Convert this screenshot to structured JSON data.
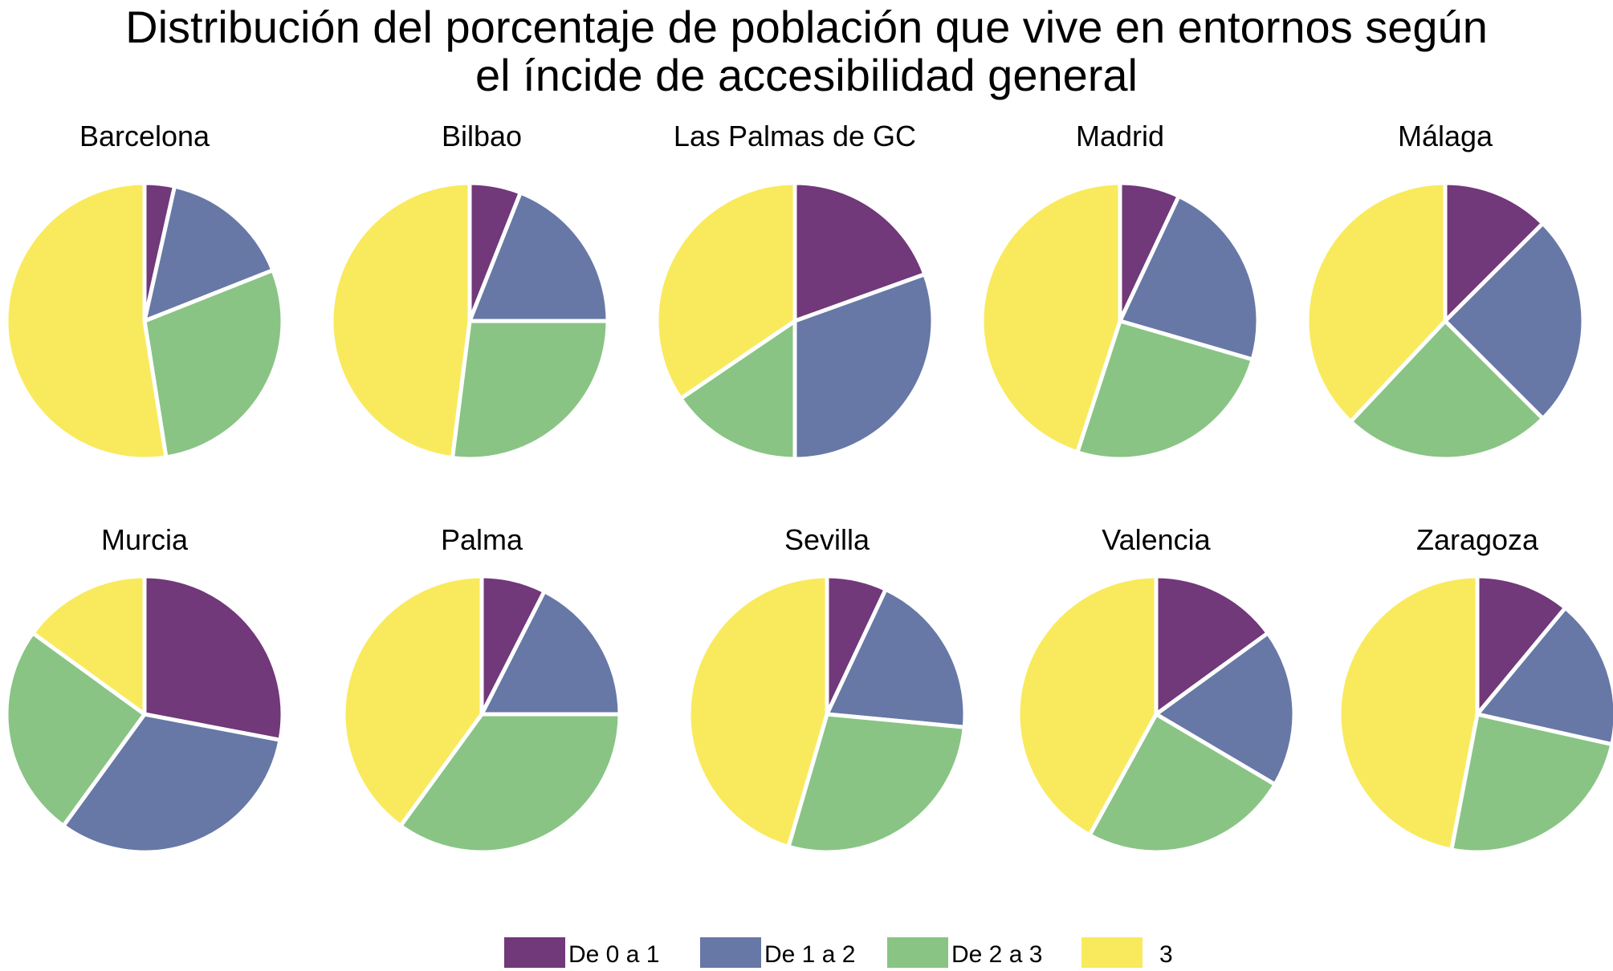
{
  "title_line1": "Distribución del porcentaje de población que vive en entornos según",
  "title_line2": "el íncide de accesibilidad general",
  "legend": [
    {
      "label": "De 0 a 1",
      "color": "#71387a"
    },
    {
      "label": "De 1 a 2",
      "color": "#6778a6"
    },
    {
      "label": "De 2 a 3",
      "color": "#89c485"
    },
    {
      "label": "3",
      "color": "#f9ea5d"
    }
  ],
  "chart_data": [
    {
      "type": "pie",
      "title": "Barcelona",
      "categories": [
        "De 0 a 1",
        "De 1 a 2",
        "De 2 a 3",
        "3"
      ],
      "values": [
        3.5,
        15.5,
        28.5,
        52.5
      ]
    },
    {
      "type": "pie",
      "title": "Bilbao",
      "categories": [
        "De 0 a 1",
        "De 1 a 2",
        "De 2 a 3",
        "3"
      ],
      "values": [
        6.0,
        19.0,
        27.0,
        48.0
      ]
    },
    {
      "type": "pie",
      "title": "Las Palmas de GC",
      "categories": [
        "De 0 a 1",
        "De 1 a 2",
        "De 2 a 3",
        "3"
      ],
      "values": [
        19.5,
        30.5,
        15.5,
        34.5
      ]
    },
    {
      "type": "pie",
      "title": "Madrid",
      "categories": [
        "De 0 a 1",
        "De 1 a 2",
        "De 2 a 3",
        "3"
      ],
      "values": [
        7.0,
        22.5,
        25.5,
        45.0
      ]
    },
    {
      "type": "pie",
      "title": "Málaga",
      "categories": [
        "De 0 a 1",
        "De 1 a 2",
        "De 2 a 3",
        "3"
      ],
      "values": [
        12.5,
        25.0,
        24.5,
        38.0
      ]
    },
    {
      "type": "pie",
      "title": "Murcia",
      "categories": [
        "De 0 a 1",
        "De 1 a 2",
        "De 2 a 3",
        "3"
      ],
      "values": [
        28.0,
        32.0,
        25.0,
        15.0
      ]
    },
    {
      "type": "pie",
      "title": "Palma",
      "categories": [
        "De 0 a 1",
        "De 1 a 2",
        "De 2 a 3",
        "3"
      ],
      "values": [
        7.5,
        17.5,
        35.0,
        40.0
      ]
    },
    {
      "type": "pie",
      "title": "Sevilla",
      "categories": [
        "De 0 a 1",
        "De 1 a 2",
        "De 2 a 3",
        "3"
      ],
      "values": [
        7.0,
        19.5,
        28.0,
        45.5
      ]
    },
    {
      "type": "pie",
      "title": "Valencia",
      "categories": [
        "De 0 a 1",
        "De 1 a 2",
        "De 2 a 3",
        "3"
      ],
      "values": [
        15.0,
        18.5,
        24.5,
        42.0
      ]
    },
    {
      "type": "pie",
      "title": "Zaragoza",
      "categories": [
        "De 0 a 1",
        "De 1 a 2",
        "De 2 a 3",
        "3"
      ],
      "values": [
        11.0,
        17.5,
        24.5,
        47.0
      ]
    }
  ]
}
